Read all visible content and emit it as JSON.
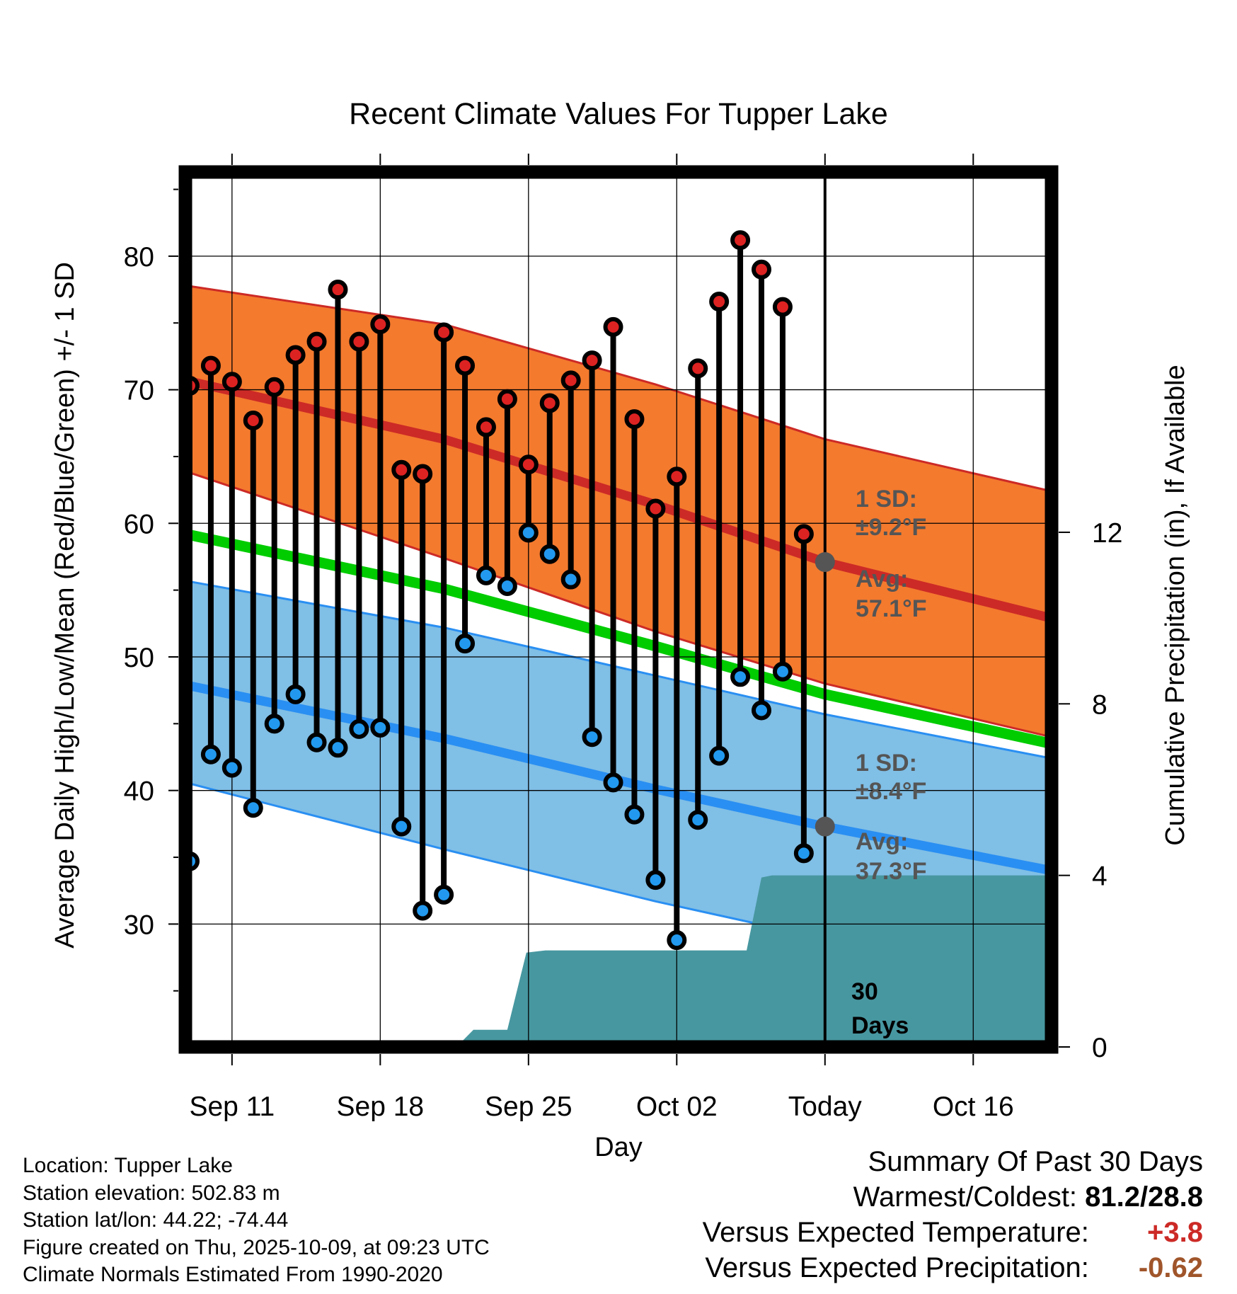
{
  "chart_data": {
    "type": "line",
    "title": "Recent Climate Values For Tupper Lake",
    "xlabel": "Day",
    "ylabel": "Average Daily High/Low/Mean (Red/Blue/Green) +/- 1 SD",
    "y2label": "Cumulative Precipitation (in), If Available",
    "xlim": [
      -2.2,
      38.7
    ],
    "ylim": [
      20.8,
      86.3
    ],
    "y2lim": [
      0,
      20.4
    ],
    "yticks": [
      30,
      40,
      50,
      60,
      70,
      80
    ],
    "y2ticks": [
      0,
      4,
      8,
      12
    ],
    "xticks": [
      {
        "x": 0,
        "label": "Sep 11"
      },
      {
        "x": 7,
        "label": "Sep 18"
      },
      {
        "x": 14,
        "label": "Sep 25"
      },
      {
        "x": 21,
        "label": "Oct 02"
      },
      {
        "x": 28,
        "label": "Today"
      },
      {
        "x": 35,
        "label": "Oct 16"
      }
    ],
    "today_x": 28,
    "normal_high": {
      "x": [
        -2.2,
        10,
        20,
        28,
        38.7
      ],
      "mean": [
        70.7,
        66.3,
        61.4,
        57.1,
        52.9
      ],
      "upper": [
        77.8,
        74.9,
        70.4,
        66.3,
        62.4
      ],
      "lower": [
        63.9,
        57.4,
        51.9,
        48.0,
        44.0
      ]
    },
    "normal_low": {
      "x": [
        -2.2,
        10,
        20,
        28,
        38.7
      ],
      "mean": [
        47.9,
        43.9,
        40.1,
        37.3,
        34.0
      ],
      "upper": [
        55.7,
        52.2,
        48.6,
        45.7,
        42.4
      ],
      "lower": [
        40.6,
        35.6,
        31.7,
        28.9,
        25.7
      ]
    },
    "normal_mean": {
      "x": [
        -2.2,
        10,
        20,
        28,
        38.7
      ],
      "values": [
        59.2,
        55.1,
        50.8,
        47.2,
        43.5
      ]
    },
    "daily": {
      "x": [
        -2,
        -1,
        0,
        1,
        2,
        3,
        4,
        5,
        6,
        7,
        8,
        9,
        10,
        11,
        12,
        13,
        14,
        15,
        16,
        17,
        18,
        19,
        20,
        21,
        22,
        23,
        24,
        25,
        26,
        27
      ],
      "high": [
        70.3,
        71.8,
        70.6,
        67.7,
        70.2,
        72.6,
        73.6,
        77.5,
        73.6,
        74.9,
        64.0,
        63.7,
        74.3,
        71.8,
        67.2,
        69.3,
        64.4,
        69.0,
        70.7,
        72.2,
        74.7,
        67.8,
        61.1,
        63.5,
        71.6,
        76.6,
        81.2,
        79.0,
        76.2,
        59.2
      ],
      "low": [
        34.7,
        42.7,
        41.7,
        38.7,
        45.0,
        47.2,
        43.6,
        43.2,
        44.6,
        44.7,
        37.3,
        31.0,
        32.2,
        51.0,
        56.1,
        55.3,
        59.3,
        57.7,
        55.8,
        44.0,
        40.6,
        38.2,
        33.3,
        28.8,
        37.8,
        42.6,
        48.5,
        46.0,
        48.9,
        35.3
      ]
    },
    "precip": {
      "x": [
        10.6,
        11.4,
        12.2,
        13.0,
        13.9,
        14.8,
        24.3,
        25.0,
        25.5,
        28,
        38.7
      ],
      "cumulative": [
        0,
        0.4,
        0.4,
        0.4,
        2.2,
        2.25,
        2.25,
        3.95,
        4.0,
        4.0,
        4.0
      ]
    },
    "annotations": {
      "high_sd": "1 SD:",
      "high_sd_val": "±9.2°F",
      "high_avg": "Avg:",
      "high_avg_val": "57.1°F",
      "low_sd": "1 SD:",
      "low_sd_val": "±8.4°F",
      "low_avg": "Avg:",
      "low_avg_val": "37.3°F",
      "days_num": "30",
      "days_word": "Days"
    },
    "colors": {
      "high_band": "#f47a2e",
      "high_line": "#cc2a26",
      "low_band": "#80bfe6",
      "low_line": "#2a8ff2",
      "mean_line": "#00cc00",
      "precip": "#4797a0",
      "dot_high": "#dd2222",
      "dot_low": "#2299ee"
    }
  },
  "info": {
    "location": "Location: Tupper Lake",
    "elevation": "Station elevation: 502.83 m",
    "latlon": "Station lat/lon: 44.22; -74.44",
    "created": "Figure created on Thu, 2025-10-09, at 09:23 UTC",
    "normals": "Climate Normals Estimated From 1990-2020"
  },
  "summary": {
    "heading": "Summary Of Past 30 Days",
    "warm_label": "Warmest/Coldest:",
    "warm_value": "81.2/28.8",
    "temp_label": "Versus Expected Temperature:",
    "temp_value": "+3.8",
    "temp_color": "#cc2a26",
    "precip_label": "Versus Expected Precipitation:",
    "precip_value": "-0.62",
    "precip_color": "#a0552a"
  }
}
